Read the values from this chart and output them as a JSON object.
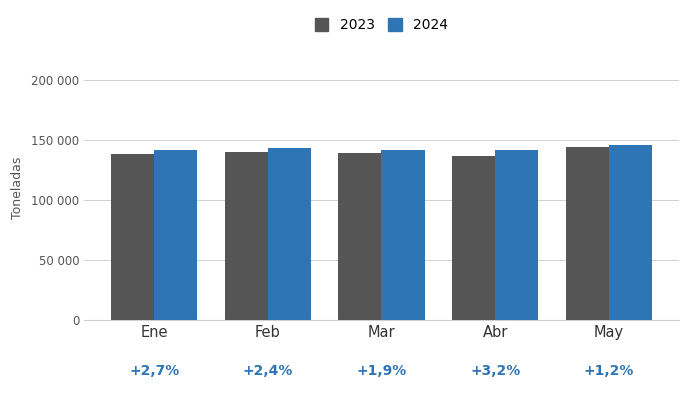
{
  "categories": [
    "Ene",
    "Feb",
    "Mar",
    "Abr",
    "May"
  ],
  "variations": [
    "+2,7%",
    "+2,4%",
    "+1,9%",
    "+3,2%",
    "+1,2%"
  ],
  "values_2023": [
    138000,
    140000,
    139000,
    137000,
    144000
  ],
  "values_2024": [
    141700,
    143360,
    141641,
    141390,
    145728
  ],
  "color_2023": "#555555",
  "color_2024": "#2e75b6",
  "ylabel": "Toneladas",
  "legend_labels": [
    "2023",
    "2024"
  ],
  "ylim": [
    0,
    220000
  ],
  "yticks": [
    0,
    50000,
    100000,
    150000,
    200000
  ],
  "ytick_labels": [
    "0",
    "50 000",
    "100 000",
    "150 000",
    "200 000"
  ],
  "variation_color": "#2e75b6",
  "background_color": "#ffffff",
  "grid_color": "#d0d0d0"
}
